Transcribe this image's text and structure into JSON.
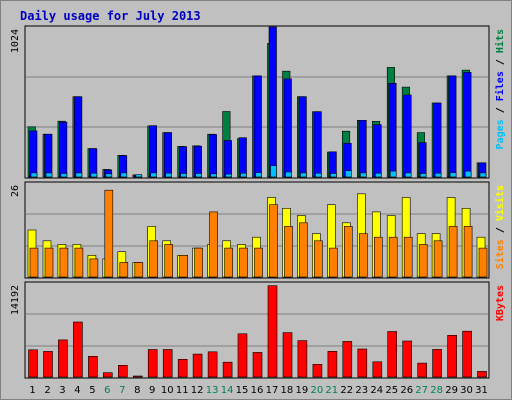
{
  "chart_data": {
    "type": "bar",
    "title": "Daily usage for July 2013",
    "categories": [
      "1",
      "2",
      "3",
      "4",
      "5",
      "6",
      "7",
      "8",
      "9",
      "10",
      "11",
      "12",
      "13",
      "14",
      "15",
      "16",
      "17",
      "18",
      "19",
      "20",
      "21",
      "22",
      "23",
      "24",
      "25",
      "26",
      "27",
      "28",
      "29",
      "30",
      "31"
    ],
    "weekend_days": [
      "6",
      "7",
      "13",
      "14",
      "20",
      "21",
      "27",
      "28"
    ],
    "panels": [
      {
        "name": "hits-files-pages",
        "ymax_label": "1024",
        "ymax": 1024,
        "right_label_parts": [
          "Pages",
          " / ",
          "Files",
          " / ",
          "Hits"
        ],
        "series": [
          {
            "name": "Hits",
            "color": "#008040",
            "values": [
              343,
              292,
              381,
              548,
              194,
              52,
              148,
              14,
              348,
              303,
              209,
              213,
              292,
              447,
              262,
              690,
              912,
              722,
              548,
              446,
              170,
              313,
              387,
              380,
              748,
              614,
              303,
              505,
              690,
              730,
              97
            ]
          },
          {
            "name": "Files",
            "color": "#0000ff",
            "values": [
              315,
              292,
              375,
              548,
              194,
              48,
              146,
              12,
              350,
              303,
              207,
              210,
              290,
              249,
              268,
              690,
              1024,
              670,
              548,
              446,
              172,
              230,
              387,
              358,
              640,
              560,
              235,
              505,
              690,
              714,
              97
            ]
          },
          {
            "name": "Pages",
            "color": "#00c0ff",
            "values": [
              28,
              28,
              24,
              28,
              26,
              22,
              28,
              16,
              28,
              26,
              24,
              24,
              22,
              20,
              26,
              30,
              78,
              34,
              28,
              26,
              24,
              44,
              28,
              26,
              40,
              28,
              24,
              26,
              30,
              40,
              28
            ]
          }
        ]
      },
      {
        "name": "visits-sites",
        "ymax_label": "26",
        "ymax": 26,
        "right_label_parts": [
          "Sites",
          " / ",
          "Visits"
        ],
        "series": [
          {
            "name": "Visits",
            "color": "#ffff00",
            "values": [
              13,
              10,
              9,
              9,
              6,
              5,
              7,
              4,
              14,
              10,
              6,
              8,
              9,
              10,
              9,
              11,
              22,
              19,
              17,
              12,
              20,
              15,
              23,
              18,
              17,
              22,
              12,
              12,
              22,
              19,
              11
            ]
          },
          {
            "name": "Sites",
            "color": "#ff8000",
            "values": [
              8,
              8,
              8,
              8,
              5,
              24,
              4,
              4,
              10,
              9,
              6,
              8,
              18,
              8,
              8,
              8,
              20,
              14,
              15,
              10,
              8,
              14,
              12,
              11,
              11,
              11,
              9,
              10,
              14,
              14,
              8
            ]
          }
        ]
      },
      {
        "name": "kbytes",
        "ymax_label": "14192",
        "ymax": 14192,
        "right_label_parts": [
          "KBytes"
        ],
        "series": [
          {
            "name": "KBytes",
            "color": "#ff0000",
            "values": [
              4100,
              3860,
              5600,
              8300,
              3120,
              650,
              1760,
              140,
              4150,
              4150,
              2670,
              3450,
              3800,
              2230,
              6520,
              3710,
              13780,
              6700,
              5500,
              1910,
              3880,
              5380,
              4230,
              2300,
              6870,
              5430,
              2100,
              4170,
              6290,
              6920,
              840
            ]
          }
        ]
      }
    ]
  }
}
